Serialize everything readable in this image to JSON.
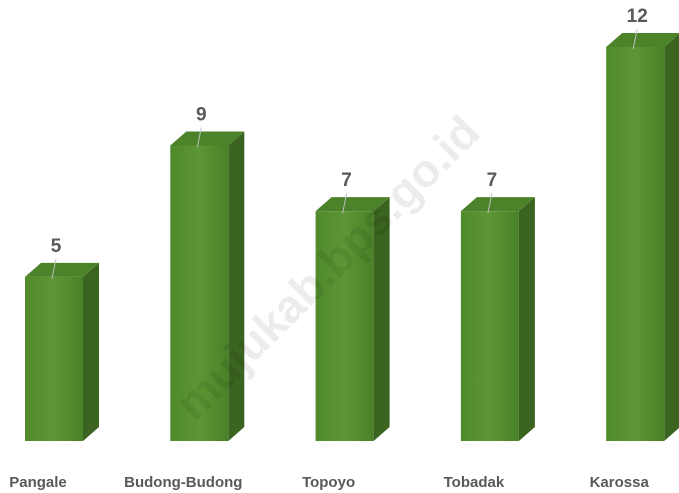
{
  "chart_data": {
    "type": "bar3d",
    "categories": [
      "Pangale",
      "Budong-Budong",
      "Topoyo",
      "Tobadak",
      "Karossa"
    ],
    "values": [
      5,
      9,
      7,
      7,
      12
    ],
    "color": "#558b2f",
    "watermark": "mujukab.bps.go.id"
  }
}
